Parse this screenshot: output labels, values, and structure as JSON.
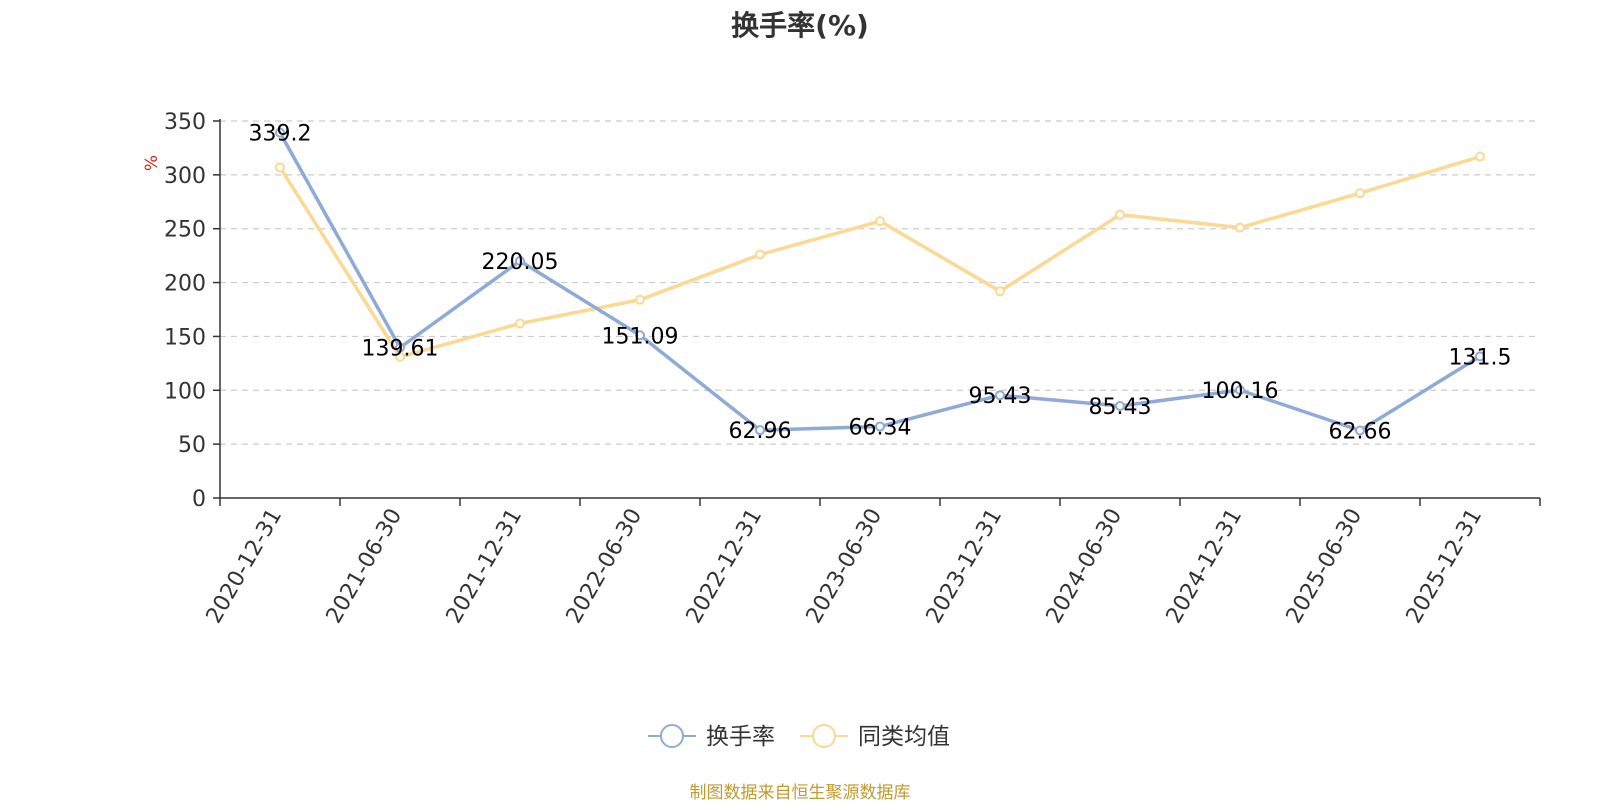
{
  "chart_data": {
    "type": "line",
    "title": "换手率(%)",
    "ylabel": "%",
    "xlabel": "",
    "ylim": [
      0,
      350
    ],
    "yticks": [
      0,
      50,
      100,
      150,
      200,
      250,
      300,
      350
    ],
    "grid": true,
    "legend_position": "bottom-center",
    "categories": [
      "2020-12-31",
      "2021-06-30",
      "2021-12-31",
      "2022-06-30",
      "2022-12-31",
      "2023-06-30",
      "2023-12-31",
      "2024-06-30",
      "2024-12-31",
      "2025-06-30",
      "2025-12-31"
    ],
    "series": [
      {
        "name": "换手率",
        "color": "#8eaad6",
        "show_labels": true,
        "values": [
          339.2,
          139.61,
          220.05,
          151.09,
          62.96,
          66.34,
          95.43,
          85.43,
          100.16,
          62.66,
          131.5
        ],
        "labels": [
          "339.2",
          "139.61",
          "220.05",
          "151.09",
          "62.96",
          "66.34",
          "95.43",
          "85.43",
          "100.16",
          "62.66",
          "131.5"
        ]
      },
      {
        "name": "同类均值",
        "color": "#fbd993",
        "show_labels": false,
        "values": [
          307,
          131,
          162,
          184,
          226,
          257,
          192,
          263,
          251,
          283,
          317
        ]
      }
    ]
  },
  "source_note": "制图数据来自恒生聚源数据库",
  "colors": {
    "axis": "#333333",
    "grid": "#cccccc",
    "ylabel": "#e0241b",
    "source": "#c49a2c"
  }
}
